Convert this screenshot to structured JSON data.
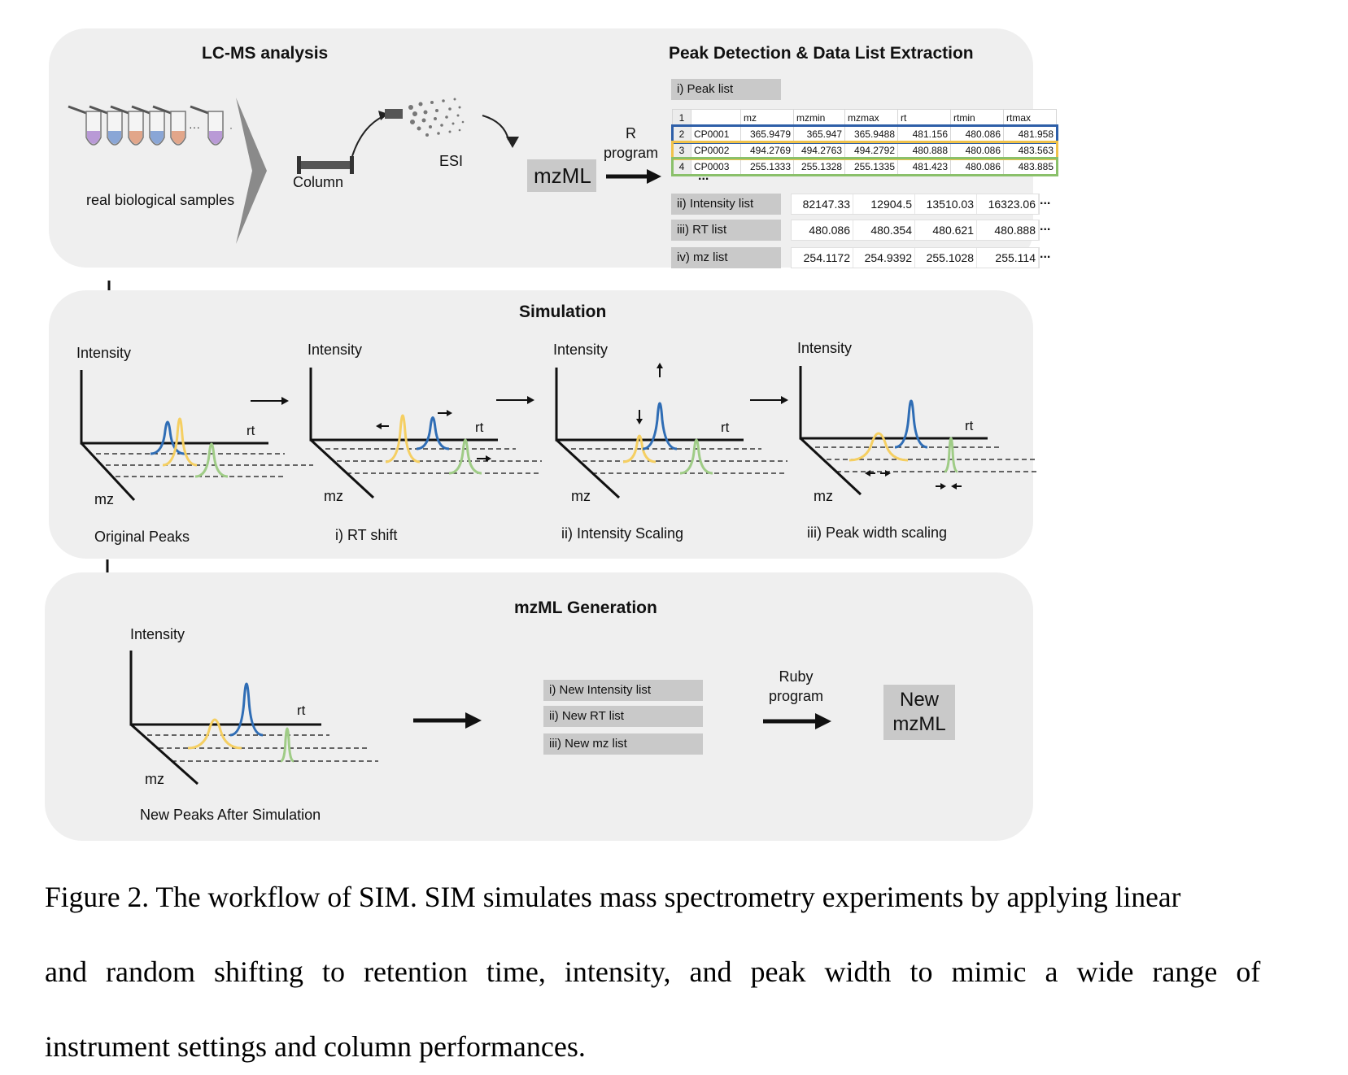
{
  "colors": {
    "peak_blue": "#2f6db5",
    "peak_yellow": "#f5cf62",
    "peak_green": "#9fcc86",
    "panel_bg": "#efefef",
    "box_gray": "#c9c9c9",
    "highlight_blue": "#2e5fa8",
    "highlight_yellow": "#f0c24a",
    "highlight_green": "#8ac06a"
  },
  "lcms": {
    "title": "LC-MS analysis",
    "samples_label": "real biological samples",
    "column_label": "Column",
    "esi_label": "ESI",
    "mzml_label": "mzML",
    "r_program_label": "R\nprogram"
  },
  "peak_detection": {
    "title": "Peak Detection  & Data List Extraction",
    "peak_list_label": "i) Peak list",
    "table_headers": [
      "1",
      "",
      "mz",
      "mzmin",
      "mzmax",
      "rt",
      "rtmin",
      "rtmax"
    ],
    "table_rows": [
      [
        "2",
        "CP0001",
        "365.9479",
        "365.947",
        "365.9488",
        "481.156",
        "480.086",
        "481.958"
      ],
      [
        "3",
        "CP0002",
        "494.2769",
        "494.2763",
        "494.2792",
        "480.888",
        "480.086",
        "483.563"
      ],
      [
        "4",
        "CP0003",
        "255.1333",
        "255.1328",
        "255.1335",
        "481.423",
        "480.086",
        "483.885"
      ]
    ],
    "table_more": "...",
    "intensity_label": "ii) Intensity list",
    "intensity_values": [
      "82147.33",
      "12904.5",
      "13510.03",
      "16323.06"
    ],
    "rt_label": "iii) RT list",
    "rt_values": [
      "480.086",
      "480.354",
      "480.621",
      "480.888"
    ],
    "mz_label": "iv) mz list",
    "mz_values": [
      "254.1172",
      "254.9392",
      "255.1028",
      "255.114"
    ],
    "ellipsis": "..."
  },
  "simulation": {
    "title": "Simulation",
    "axis_intensity": "Intensity",
    "axis_rt": "rt",
    "axis_mz": "mz",
    "captions": [
      "Original Peaks",
      "i) RT shift",
      "ii) Intensity Scaling",
      "iii) Peak width scaling"
    ]
  },
  "generation": {
    "title": "mzML Generation",
    "axis_intensity": "Intensity",
    "axis_rt": "rt",
    "axis_mz": "mz",
    "caption": "New Peaks After Simulation",
    "lists": [
      "i) New Intensity list",
      "ii) New RT list",
      "iii) New mz list"
    ],
    "ruby_label": "Ruby\nprogram",
    "new_mzml_label": "New\nmzML"
  },
  "figure_caption": {
    "lines": [
      "Figure 2. The workflow of SIM. SIM simulates mass spectrometry experiments by applying linear",
      "and random shifting to retention time, intensity, and peak width to mimic a wide range of",
      "instrument settings and column performances."
    ]
  }
}
